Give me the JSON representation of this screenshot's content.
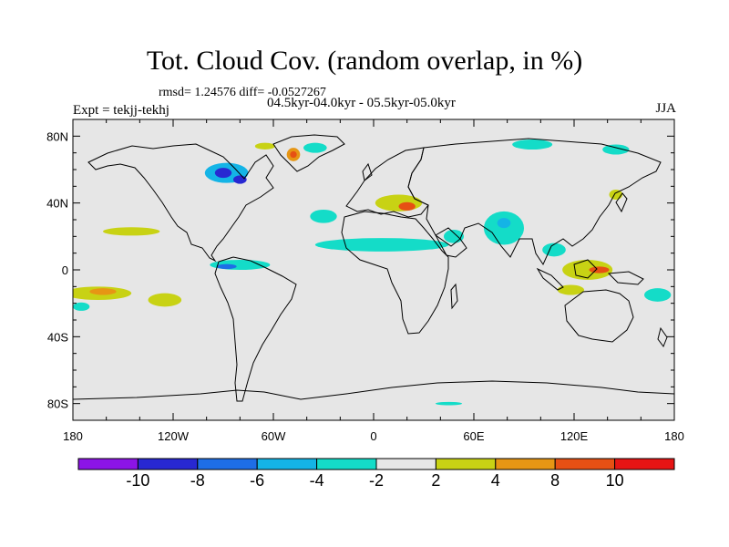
{
  "title": "Tot. Cloud Cov. (random overlap, in %)",
  "stats": "rmsd= 1.24576 diff= -0.0527267",
  "experiment": "Expt = tekjj-tekhj",
  "period": "04.5kyr-04.0kyr - 05.5kyr-05.0kyr",
  "season": "JJA",
  "colors": {
    "background": "#e6e6e6",
    "coastline": "#000000"
  },
  "chart_data": {
    "type": "heatmap",
    "title": "Tot. Cloud Cov. (random overlap, in %)",
    "x_ticks": [
      "180",
      "120W",
      "60W",
      "0",
      "60E",
      "120E",
      "180"
    ],
    "x_tick_values": [
      -180,
      -120,
      -60,
      0,
      60,
      120,
      180
    ],
    "y_ticks": [
      "80N",
      "40N",
      "0",
      "40S",
      "80S"
    ],
    "y_tick_values": [
      80,
      40,
      0,
      -40,
      -80
    ],
    "xlim": [
      -180,
      180
    ],
    "ylim": [
      -90,
      90
    ],
    "colorbar": {
      "levels": [
        -10,
        -8,
        -6,
        -4,
        -2,
        2,
        4,
        8,
        10
      ],
      "labels": [
        "-10",
        "-8",
        "-6",
        "-4",
        "-2",
        "2",
        "4",
        "8",
        "10"
      ],
      "colors": [
        "#8c14e6",
        "#2828d2",
        "#1e6ee6",
        "#14b4e6",
        "#14dcc8",
        "#e6e6e6",
        "#c8d214",
        "#e69614",
        "#e65014",
        "#e61414"
      ]
    },
    "anomaly_regions": [
      {
        "name": "canada-hudson",
        "lon": -88,
        "lat": 58,
        "rx": 13,
        "ry": 6,
        "level": -4
      },
      {
        "name": "canada-hudson-core",
        "lon": -90,
        "lat": 58,
        "rx": 5,
        "ry": 3,
        "level": -8
      },
      {
        "name": "canada-east-core",
        "lon": -80,
        "lat": 54,
        "rx": 4,
        "ry": 2.5,
        "level": -8
      },
      {
        "name": "greenland-west",
        "lon": -48,
        "lat": 69,
        "rx": 4,
        "ry": 4,
        "level": 4
      },
      {
        "name": "greenland-core",
        "lon": -48,
        "lat": 69,
        "rx": 2,
        "ry": 2,
        "level": 8
      },
      {
        "name": "greenland-east",
        "lon": -35,
        "lat": 73,
        "rx": 7,
        "ry": 3,
        "level": -2
      },
      {
        "name": "greenland-north",
        "lon": -65,
        "lat": 74,
        "rx": 6,
        "ry": 2,
        "level": 2
      },
      {
        "name": "mediterranean",
        "lon": 15,
        "lat": 40,
        "rx": 14,
        "ry": 5,
        "level": 2
      },
      {
        "name": "mediterranean-core",
        "lon": 20,
        "lat": 38,
        "rx": 5,
        "ry": 2.5,
        "level": 8
      },
      {
        "name": "sahel",
        "lon": 5,
        "lat": 15,
        "rx": 40,
        "ry": 4,
        "level": -2
      },
      {
        "name": "india",
        "lon": 78,
        "lat": 25,
        "rx": 12,
        "ry": 10,
        "level": -2
      },
      {
        "name": "india-core",
        "lon": 78,
        "lat": 28,
        "rx": 4,
        "ry": 3,
        "level": -4
      },
      {
        "name": "arabia-east",
        "lon": 48,
        "lat": 20,
        "rx": 6,
        "ry": 4,
        "level": -2
      },
      {
        "name": "atlantic-north",
        "lon": -30,
        "lat": 32,
        "rx": 8,
        "ry": 4,
        "level": -2
      },
      {
        "name": "central-america",
        "lon": -80,
        "lat": 3,
        "rx": 18,
        "ry": 3,
        "level": -2
      },
      {
        "name": "central-america-core",
        "lon": -88,
        "lat": 2,
        "rx": 6,
        "ry": 1.5,
        "level": -6
      },
      {
        "name": "pacific-south",
        "lon": -165,
        "lat": -14,
        "rx": 20,
        "ry": 4,
        "level": 2
      },
      {
        "name": "pacific-south-core",
        "lon": -162,
        "lat": -13,
        "rx": 8,
        "ry": 2,
        "level": 4
      },
      {
        "name": "pacific-south-east",
        "lon": -125,
        "lat": -18,
        "rx": 10,
        "ry": 4,
        "level": 2
      },
      {
        "name": "pacific-north",
        "lon": -145,
        "lat": 23,
        "rx": 17,
        "ry": 2.5,
        "level": 2
      },
      {
        "name": "pacific-south-west",
        "lon": -175,
        "lat": -22,
        "rx": 5,
        "ry": 2.5,
        "level": -2
      },
      {
        "name": "maritime-continent",
        "lon": 128,
        "lat": 0,
        "rx": 15,
        "ry": 6,
        "level": 2
      },
      {
        "name": "maritime-continent-core",
        "lon": 135,
        "lat": 0,
        "rx": 6,
        "ry": 2,
        "level": 8
      },
      {
        "name": "indochina",
        "lon": 108,
        "lat": 12,
        "rx": 7,
        "ry": 4,
        "level": -2
      },
      {
        "name": "australia-nw",
        "lon": 118,
        "lat": -12,
        "rx": 8,
        "ry": 3,
        "level": 2
      },
      {
        "name": "siberia",
        "lon": 95,
        "lat": 75,
        "rx": 12,
        "ry": 3,
        "level": -2
      },
      {
        "name": "arctic-east",
        "lon": 145,
        "lat": 72,
        "rx": 8,
        "ry": 3,
        "level": -2
      },
      {
        "name": "east-asia",
        "lon": 145,
        "lat": 45,
        "rx": 4,
        "ry": 3,
        "level": 2
      },
      {
        "name": "australia-east",
        "lon": 170,
        "lat": -15,
        "rx": 8,
        "ry": 4,
        "level": -2
      },
      {
        "name": "southern-ocean",
        "lon": 45,
        "lat": -80,
        "rx": 8,
        "ry": 1,
        "level": -2
      }
    ]
  }
}
